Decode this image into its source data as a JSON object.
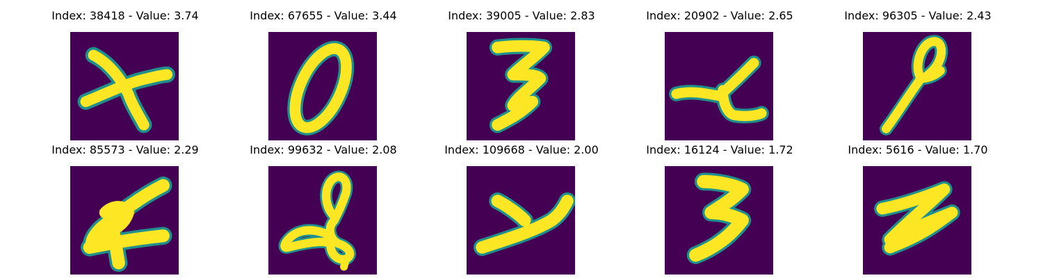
{
  "colors": {
    "background": "#440154",
    "stroke": "#fde725",
    "edge_mid": "#2a788e",
    "edge_low": "#22a884"
  },
  "samples": [
    {
      "title": "Index: 38418 - Value: 3.74",
      "glyph": "x-shape"
    },
    {
      "title": "Index: 67655 - Value: 3.44",
      "glyph": "zero-slanted"
    },
    {
      "title": "Index: 39005 - Value: 2.83",
      "glyph": "three"
    },
    {
      "title": "Index: 20902 - Value: 2.65",
      "glyph": "h-slanted"
    },
    {
      "title": "Index: 96305 - Value: 2.43",
      "glyph": "loop-stem"
    },
    {
      "title": "Index: 85573 - Value: 2.29",
      "glyph": "a-shape"
    },
    {
      "title": "Index: 99632 - Value: 2.08",
      "glyph": "g-loop"
    },
    {
      "title": "Index: 109668 - Value: 2.00",
      "glyph": "y-slanted"
    },
    {
      "title": "Index: 16124 - Value: 1.72",
      "glyph": "three"
    },
    {
      "title": "Index: 5616 - Value: 1.70",
      "glyph": "z-shape"
    }
  ]
}
